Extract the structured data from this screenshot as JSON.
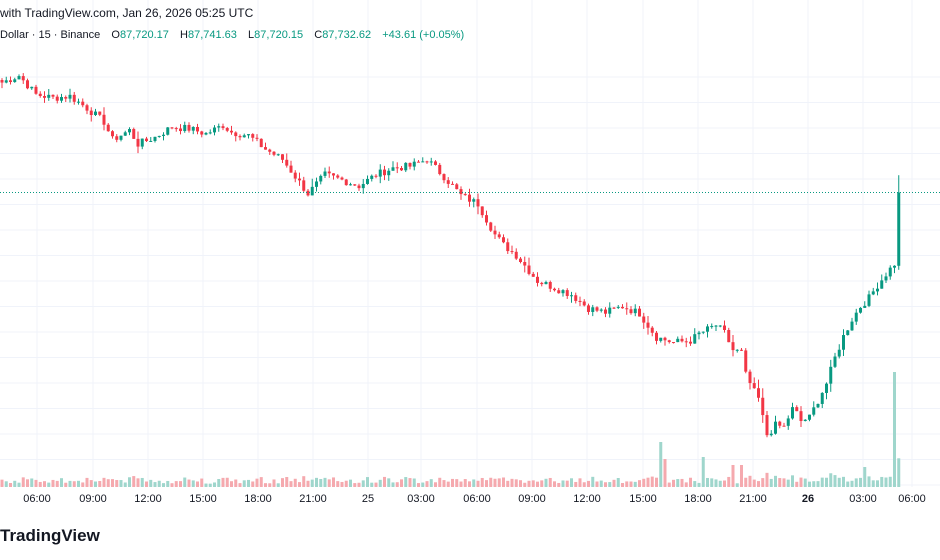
{
  "caption": "with TradingView.com, Jan 26, 2026 05:25 UTC",
  "legend": {
    "symbol": "Dollar · 15 · Binance",
    "open_label": "O",
    "open": "87,720.17",
    "high_label": "H",
    "high": "87,741.63",
    "low_label": "L",
    "low": "87,720.15",
    "close_label": "C",
    "close": "87,732.62",
    "change": "+43.61 (+0.05%)"
  },
  "brand": "TradingView",
  "colors": {
    "up": "#089981",
    "down": "#f23645",
    "vol_up": "#9fd6cc",
    "vol_down": "#f5a9ae",
    "grid": "#f0f3fa",
    "price_line": "#089981"
  },
  "chart_data": {
    "type": "candlestick",
    "x_ticks": [
      {
        "label": "06:00",
        "bold": false
      },
      {
        "label": "09:00",
        "bold": false
      },
      {
        "label": "12:00",
        "bold": false
      },
      {
        "label": "15:00",
        "bold": false
      },
      {
        "label": "18:00",
        "bold": false
      },
      {
        "label": "21:00",
        "bold": false
      },
      {
        "label": "25",
        "bold": false
      },
      {
        "label": "03:00",
        "bold": false
      },
      {
        "label": "06:00",
        "bold": false
      },
      {
        "label": "09:00",
        "bold": false
      },
      {
        "label": "12:00",
        "bold": false
      },
      {
        "label": "15:00",
        "bold": false
      },
      {
        "label": "18:00",
        "bold": false
      },
      {
        "label": "21:00",
        "bold": false
      },
      {
        "label": "26",
        "bold": true
      },
      {
        "label": "03:00",
        "bold": false
      },
      {
        "label": "06:00",
        "bold": false
      }
    ],
    "current_price": 87732.62,
    "close_path": [
      [
        0,
        89020
      ],
      [
        4,
        89100
      ],
      [
        8,
        88880
      ],
      [
        12,
        88840
      ],
      [
        16,
        88860
      ],
      [
        20,
        88720
      ],
      [
        24,
        88560
      ],
      [
        26,
        88350
      ],
      [
        30,
        88460
      ],
      [
        32,
        88300
      ],
      [
        36,
        88380
      ],
      [
        40,
        88500
      ],
      [
        44,
        88480
      ],
      [
        48,
        88420
      ],
      [
        52,
        88520
      ],
      [
        54,
        88440
      ],
      [
        58,
        88400
      ],
      [
        62,
        88240
      ],
      [
        66,
        88120
      ],
      [
        69,
        87920
      ],
      [
        72,
        87720
      ],
      [
        76,
        87940
      ],
      [
        80,
        87880
      ],
      [
        84,
        87810
      ],
      [
        88,
        87940
      ],
      [
        92,
        88020
      ],
      [
        96,
        88040
      ],
      [
        100,
        88120
      ],
      [
        104,
        87920
      ],
      [
        108,
        87700
      ],
      [
        112,
        87600
      ],
      [
        116,
        87240
      ],
      [
        118,
        87120
      ],
      [
        121,
        87000
      ],
      [
        123,
        86880
      ],
      [
        126,
        86700
      ],
      [
        130,
        86620
      ],
      [
        134,
        86540
      ],
      [
        138,
        86380
      ],
      [
        142,
        86330
      ],
      [
        146,
        86400
      ],
      [
        150,
        86320
      ],
      [
        154,
        86040
      ],
      [
        158,
        85980
      ],
      [
        162,
        86000
      ],
      [
        164,
        86080
      ],
      [
        168,
        86180
      ],
      [
        170,
        86090
      ],
      [
        172,
        85890
      ],
      [
        174,
        85860
      ],
      [
        175,
        85600
      ],
      [
        176,
        85500
      ],
      [
        177,
        85400
      ],
      [
        178,
        85320
      ],
      [
        179,
        85100
      ],
      [
        180,
        84900
      ],
      [
        181,
        84950
      ],
      [
        182,
        85010
      ],
      [
        183,
        85000
      ],
      [
        184,
        84990
      ],
      [
        185,
        85100
      ],
      [
        186,
        85200
      ],
      [
        187,
        85150
      ],
      [
        188,
        85060
      ],
      [
        190,
        85100
      ],
      [
        192,
        85300
      ],
      [
        194,
        85500
      ],
      [
        196,
        85800
      ],
      [
        198,
        86050
      ],
      [
        200,
        86250
      ],
      [
        202,
        86400
      ],
      [
        204,
        86500
      ],
      [
        206,
        86650
      ],
      [
        208,
        86780
      ],
      [
        210,
        86900
      ]
    ]
  }
}
